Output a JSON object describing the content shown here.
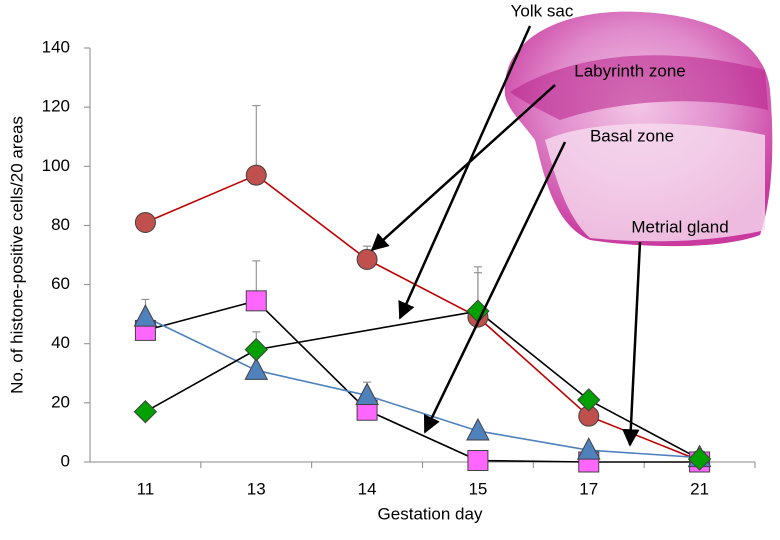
{
  "chart_data": {
    "type": "line",
    "xlabel": "Gestation day",
    "ylabel": "No. of histone-positive cells/20 areas",
    "categories": [
      "11",
      "13",
      "14",
      "15",
      "17",
      "21"
    ],
    "ylim": [
      0,
      140
    ],
    "yticks": [
      0,
      20,
      40,
      60,
      80,
      100,
      120,
      140
    ],
    "series": [
      {
        "name": "Labyrinth zone",
        "color": "#c0504d",
        "line_color": "#c00000",
        "marker": "circle",
        "values": [
          81,
          97,
          68.5,
          49,
          15.5,
          0.5
        ],
        "errors": [
          null,
          23.5,
          4.5,
          17,
          null,
          null
        ]
      },
      {
        "name": "Basal zone",
        "color": "#ff66ff",
        "line_color": "#000000",
        "marker": "square",
        "values": [
          44.5,
          54.5,
          17.5,
          0.5,
          0,
          0
        ],
        "errors": [
          null,
          13.5,
          null,
          null,
          null,
          null
        ]
      },
      {
        "name": "Metrial gland",
        "color": "#4f81bd",
        "line_color": "#4f81bd",
        "marker": "triangle",
        "values": [
          49,
          31,
          22.5,
          10.5,
          4,
          1.5
        ],
        "errors": [
          6,
          null,
          4.5,
          null,
          null,
          null
        ]
      },
      {
        "name": "Yolk sac",
        "color": "#00a000",
        "line_color": "#000000",
        "marker": "diamond",
        "values": [
          17,
          38,
          null,
          51,
          21,
          1
        ],
        "errors": [
          null,
          6,
          null,
          13,
          null,
          null
        ]
      }
    ]
  }
}
